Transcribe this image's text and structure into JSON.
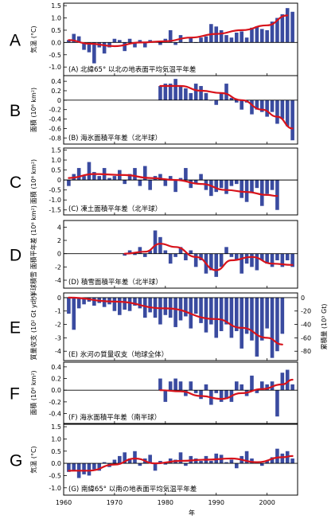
{
  "colors": {
    "bar": "#3a4ba0",
    "curve": "#d8131b",
    "frame": "#000000",
    "zero": "#000000"
  },
  "xaxis": {
    "label": "年",
    "ticks": [
      1960,
      1970,
      1980,
      1990,
      2000
    ],
    "range": [
      1960,
      2006
    ]
  },
  "chart_data": [
    {
      "type": "bar",
      "letter": "A",
      "title": "(A) 北緯65° 以北の地表面平均気温平年差",
      "ylabel": "気温 (°C)",
      "ylim": [
        -1.35,
        1.6
      ],
      "yticks": [
        1.5,
        1.0,
        0.5,
        0.0,
        -0.5,
        -1.0
      ],
      "ytick_labels": [
        "1.5",
        "1.0",
        "0.5",
        "0.0",
        "-0.5",
        "-1.0"
      ],
      "x": [
        1961,
        1962,
        1963,
        1964,
        1965,
        1966,
        1967,
        1968,
        1969,
        1970,
        1971,
        1972,
        1973,
        1974,
        1975,
        1976,
        1977,
        1978,
        1979,
        1980,
        1981,
        1982,
        1983,
        1984,
        1985,
        1986,
        1987,
        1988,
        1989,
        1990,
        1991,
        1992,
        1993,
        1994,
        1995,
        1996,
        1997,
        1998,
        1999,
        2000,
        2001,
        2002,
        2003,
        2004,
        2005
      ],
      "values": [
        0.1,
        0.35,
        0.25,
        -0.3,
        -0.4,
        -0.85,
        -0.2,
        -0.45,
        -0.2,
        0.15,
        0.1,
        -0.35,
        0.15,
        -0.2,
        0.1,
        -0.2,
        0.1,
        0.05,
        -0.1,
        0.15,
        0.5,
        -0.1,
        0.3,
        0.0,
        0.2,
        0.0,
        0.2,
        0.25,
        0.75,
        0.65,
        0.5,
        0.3,
        0.2,
        0.4,
        0.45,
        0.2,
        0.6,
        0.65,
        0.55,
        0.5,
        0.85,
        1.0,
        1.15,
        1.4,
        1.25
      ],
      "curve_x": [
        1961,
        1965,
        1970,
        1975,
        1980,
        1985,
        1990,
        1995,
        2000,
        2004
      ],
      "curve_y": [
        0.1,
        -0.05,
        -0.15,
        0.0,
        0.05,
        0.2,
        0.35,
        0.5,
        0.7,
        1.1
      ]
    },
    {
      "type": "bar",
      "letter": "B",
      "title": "(B) 海氷面積平年差（北半球）",
      "ylabel": "面積 (10⁶ km²)",
      "ylim": [
        -0.93,
        0.52
      ],
      "yticks": [
        0.4,
        0.2,
        0.0,
        -0.2,
        -0.4,
        -0.6,
        -0.8
      ],
      "ytick_labels": [
        "0.4",
        "0.2",
        "0",
        "-0.2",
        "-0.4",
        "-0.6",
        "-0.8"
      ],
      "x": [
        1979,
        1980,
        1981,
        1982,
        1983,
        1984,
        1985,
        1986,
        1987,
        1988,
        1989,
        1990,
        1991,
        1992,
        1993,
        1994,
        1995,
        1996,
        1997,
        1998,
        1999,
        2000,
        2001,
        2002,
        2003,
        2004,
        2005
      ],
      "values": [
        0.3,
        0.35,
        0.35,
        0.45,
        0.3,
        0.25,
        0.15,
        0.35,
        0.3,
        0.15,
        0.0,
        -0.1,
        0.15,
        0.35,
        0.05,
        -0.05,
        -0.2,
        -0.05,
        -0.3,
        -0.2,
        -0.25,
        -0.35,
        -0.25,
        -0.5,
        -0.4,
        -0.55,
        -0.85
      ],
      "curve_x": [
        1979,
        1983,
        1987,
        1991,
        1995,
        1999,
        2002,
        2005
      ],
      "curve_y": [
        0.3,
        0.3,
        0.2,
        0.15,
        0.0,
        -0.2,
        -0.35,
        -0.6
      ]
    },
    {
      "type": "bar",
      "letter": "C",
      "title": "(C) 凍土面積平年差（北半球）",
      "ylabel": "面積 (10⁶ km²)",
      "ylim": [
        -1.75,
        1.6
      ],
      "yticks": [
        1.5,
        1.0,
        0.5,
        0.0,
        -0.5,
        -1.0,
        -1.5
      ],
      "ytick_labels": [
        "1.5",
        "1.0",
        "0.5",
        "0",
        "-0.5",
        "-1.0",
        "-1.5"
      ],
      "x": [
        1961,
        1962,
        1963,
        1964,
        1965,
        1966,
        1967,
        1968,
        1969,
        1970,
        1971,
        1972,
        1973,
        1974,
        1975,
        1976,
        1977,
        1978,
        1979,
        1980,
        1981,
        1982,
        1983,
        1984,
        1985,
        1986,
        1987,
        1988,
        1989,
        1990,
        1991,
        1992,
        1993,
        1994,
        1995,
        1996,
        1997,
        1998,
        1999,
        2000,
        2001,
        2002
      ],
      "values": [
        -0.3,
        0.3,
        0.6,
        0.2,
        0.9,
        0.4,
        0.2,
        0.6,
        0.1,
        0.2,
        0.5,
        -0.2,
        0.3,
        0.6,
        -0.3,
        0.7,
        -0.5,
        0.2,
        0.3,
        -0.3,
        0.2,
        -0.6,
        0.1,
        0.6,
        -0.4,
        -0.2,
        0.3,
        -0.5,
        -0.8,
        -0.6,
        -0.4,
        -0.7,
        -0.3,
        -0.2,
        -0.9,
        -1.1,
        -0.6,
        -0.4,
        -1.3,
        -0.7,
        -0.5,
        -1.5
      ],
      "curve_x": [
        1961,
        1966,
        1972,
        1977,
        1982,
        1987,
        1992,
        1996,
        2000,
        2002
      ],
      "curve_y": [
        0.1,
        0.3,
        0.25,
        0.1,
        0.0,
        -0.2,
        -0.5,
        -0.6,
        -0.75,
        -0.8
      ]
    },
    {
      "type": "bar",
      "letter": "D",
      "title": "(D) 積雪面積平年差（北半球）",
      "ylabel": "北半球積雪 面積平年差 (10⁶ km²)",
      "ylim": [
        -5.2,
        5.0
      ],
      "yticks": [
        4,
        2,
        0,
        -2,
        -4
      ],
      "ytick_labels": [
        "4",
        "2",
        "0",
        "-2",
        "-4"
      ],
      "x": [
        1972,
        1973,
        1974,
        1975,
        1976,
        1977,
        1978,
        1979,
        1980,
        1981,
        1982,
        1983,
        1984,
        1985,
        1986,
        1987,
        1988,
        1989,
        1990,
        1991,
        1992,
        1993,
        1994,
        1995,
        1996,
        1997,
        1998,
        1999,
        2000,
        2001,
        2002,
        2003,
        2004,
        2005
      ],
      "values": [
        -0.3,
        0.5,
        -0.2,
        1.0,
        -0.5,
        0.5,
        3.5,
        2.5,
        0.5,
        -1.5,
        -0.5,
        1.0,
        -1.0,
        0.5,
        -2.0,
        -1.0,
        -3.0,
        -2.5,
        -3.5,
        -2.0,
        1.0,
        -0.5,
        -1.0,
        -3.0,
        -1.5,
        -2.0,
        -2.5,
        -1.0,
        -1.5,
        -2.0,
        -1.0,
        -2.0,
        -1.0,
        -2.0
      ],
      "curve_x": [
        1972,
        1976,
        1979,
        1982,
        1986,
        1990,
        1993,
        1997,
        2001,
        2005
      ],
      "curve_y": [
        0.0,
        0.3,
        1.5,
        1.0,
        -0.5,
        -2.5,
        -1.0,
        -0.5,
        -1.5,
        -1.7
      ]
    },
    {
      "type": "bar",
      "letter": "E",
      "title": "(E) 氷河の質量収支（地球全体）",
      "ylabel": "質量収支 (10² Gt yr⁻¹)",
      "ylabel_right": "累積量 (10³ Gt)",
      "ylim": [
        -4.7,
        0.35
      ],
      "yticks": [
        0,
        -1,
        -2,
        -3,
        -4
      ],
      "ytick_labels": [
        "0",
        "-1",
        "-2",
        "-3",
        "-4"
      ],
      "right_ylim": [
        -94,
        7
      ],
      "right_yticks": [
        0,
        -20,
        -40,
        -60,
        -80
      ],
      "right_ytick_labels": [
        "0",
        "-20",
        "-40",
        "-60",
        "-80"
      ],
      "x": [
        1961,
        1962,
        1963,
        1964,
        1965,
        1966,
        1967,
        1968,
        1969,
        1970,
        1971,
        1972,
        1973,
        1974,
        1975,
        1976,
        1977,
        1978,
        1979,
        1980,
        1981,
        1982,
        1983,
        1984,
        1985,
        1986,
        1987,
        1988,
        1989,
        1990,
        1991,
        1992,
        1993,
        1994,
        1995,
        1996,
        1997,
        1998,
        1999,
        2000,
        2001,
        2002,
        2003
      ],
      "values": [
        -1.2,
        -2.4,
        -0.8,
        -0.5,
        -0.3,
        -0.6,
        -0.4,
        -0.7,
        -0.5,
        -1.0,
        -1.3,
        -0.9,
        -1.0,
        -0.6,
        -0.8,
        -1.5,
        -1.1,
        -1.5,
        -2.0,
        -1.3,
        -1.5,
        -2.2,
        -1.7,
        -1.4,
        -2.3,
        -1.2,
        -1.9,
        -2.6,
        -2.0,
        -3.0,
        -2.5,
        -2.0,
        -3.0,
        -2.5,
        -3.8,
        -2.7,
        -3.2,
        -4.4,
        -3.2,
        -2.3,
        -4.5,
        -4.0,
        -2.7
      ],
      "cumulative_x": [
        1961,
        1970,
        1980,
        1990,
        1995,
        2000,
        2003
      ],
      "cumulative_y": [
        0,
        -6,
        -16,
        -32,
        -45,
        -60,
        -70
      ]
    },
    {
      "type": "bar",
      "letter": "F",
      "title": "(F) 海氷面積平年差（南半球）",
      "ylabel": "面積 (10⁶ km²)",
      "ylim": [
        -0.57,
        0.48
      ],
      "yticks": [
        0.4,
        0.2,
        0.0,
        -0.2,
        -0.4
      ],
      "ytick_labels": [
        "0.4",
        "0.2",
        "0.0",
        "-0.2",
        "-0.4"
      ],
      "x": [
        1979,
        1980,
        1981,
        1982,
        1983,
        1984,
        1985,
        1986,
        1987,
        1988,
        1989,
        1990,
        1991,
        1992,
        1993,
        1994,
        1995,
        1996,
        1997,
        1998,
        1999,
        2000,
        2001,
        2002,
        2003,
        2004,
        2005
      ],
      "values": [
        0.2,
        -0.2,
        0.15,
        0.2,
        0.15,
        -0.1,
        0.15,
        -0.05,
        -0.15,
        0.1,
        -0.25,
        -0.05,
        -0.2,
        -0.15,
        -0.2,
        0.15,
        0.1,
        -0.1,
        0.25,
        -0.05,
        0.15,
        0.1,
        0.15,
        -0.45,
        0.3,
        0.35,
        0.1
      ],
      "curve_x": [
        1979,
        1983,
        1987,
        1991,
        1995,
        1999,
        2003,
        2005
      ],
      "curve_y": [
        0.0,
        -0.02,
        -0.1,
        -0.15,
        -0.05,
        0.02,
        0.1,
        0.18
      ]
    },
    {
      "type": "bar",
      "letter": "G",
      "title": "(G) 南緯65° 以南の地表面平均気温平年差",
      "ylabel": "気温 (°C)",
      "ylim": [
        -1.3,
        1.6
      ],
      "yticks": [
        1.5,
        1.0,
        0.5,
        0.0,
        -0.5,
        -1.0
      ],
      "ytick_labels": [
        "1.5",
        "1.0",
        "0.5",
        "0.0",
        "-0.5",
        "-1.0"
      ],
      "x": [
        1961,
        1962,
        1963,
        1964,
        1965,
        1966,
        1967,
        1968,
        1969,
        1970,
        1971,
        1972,
        1973,
        1974,
        1975,
        1976,
        1977,
        1978,
        1979,
        1980,
        1981,
        1982,
        1983,
        1984,
        1985,
        1986,
        1987,
        1988,
        1989,
        1990,
        1991,
        1992,
        1993,
        1994,
        1995,
        1996,
        1997,
        1998,
        1999,
        2000,
        2001,
        2002,
        2003,
        2004,
        2005
      ],
      "values": [
        -0.35,
        -0.3,
        -0.6,
        -0.45,
        -0.5,
        -0.25,
        -0.3,
        0.05,
        -0.15,
        0.15,
        0.3,
        0.45,
        0.2,
        0.5,
        -0.1,
        0.2,
        0.35,
        -0.3,
        0.1,
        -0.05,
        0.2,
        0.15,
        0.45,
        -0.1,
        0.3,
        0.2,
        0.1,
        0.3,
        0.1,
        0.4,
        0.35,
        0.05,
        0.15,
        -0.2,
        0.3,
        0.5,
        0.2,
        0.05,
        -0.1,
        0.1,
        0.25,
        0.6,
        0.4,
        0.5,
        0.2
      ],
      "curve_x": [
        1961,
        1965,
        1970,
        1974,
        1978,
        1983,
        1988,
        1993,
        1998,
        2003,
        2005
      ],
      "curve_y": [
        -0.3,
        -0.3,
        -0.05,
        0.2,
        0.0,
        0.1,
        0.15,
        0.2,
        0.05,
        0.25,
        0.3
      ]
    }
  ]
}
